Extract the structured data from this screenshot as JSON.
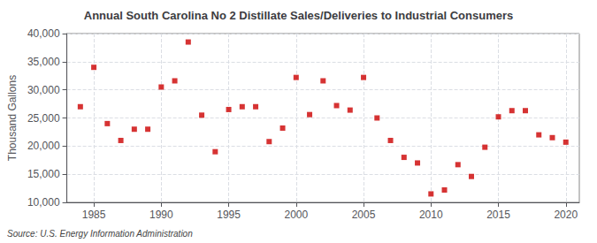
{
  "chart_data": {
    "type": "scatter",
    "title": "Annual South Carolina No 2 Distillate Sales/Deliveries to Industrial Consumers",
    "ylabel": "Thousand Gallons",
    "annotation": "Source: U.S. Energy Information Administration",
    "x": [
      1984,
      1985,
      1986,
      1987,
      1988,
      1989,
      1990,
      1991,
      1992,
      1993,
      1994,
      1995,
      1996,
      1997,
      1998,
      1999,
      2000,
      2001,
      2002,
      2003,
      2004,
      2005,
      2006,
      2007,
      2008,
      2009,
      2010,
      2011,
      2012,
      2013,
      2014,
      2015,
      2016,
      2017,
      2018,
      2019,
      2020
    ],
    "values": [
      27000,
      34000,
      24000,
      21000,
      23000,
      23000,
      30500,
      31600,
      38500,
      25500,
      19000,
      26500,
      27000,
      27000,
      20800,
      23200,
      32200,
      25600,
      31600,
      27200,
      26400,
      32200,
      25000,
      21000,
      18000,
      17000,
      11500,
      12200,
      16700,
      14600,
      19800,
      25200,
      26300,
      26300,
      22000,
      21500,
      20700
    ],
    "color": "#cc0000",
    "marker": "square",
    "xlim": [
      1983,
      2021
    ],
    "ylim": [
      10000,
      40000
    ],
    "xticks": [
      1985,
      1990,
      1995,
      2000,
      2005,
      2010,
      2015,
      2020
    ],
    "yticks": [
      {
        "value": 10000,
        "label": "10,000"
      },
      {
        "value": 15000,
        "label": "15,000"
      },
      {
        "value": 20000,
        "label": "20,000"
      },
      {
        "value": 25000,
        "label": "25,000"
      },
      {
        "value": 30000,
        "label": "30,000"
      },
      {
        "value": 35000,
        "label": "35,000"
      },
      {
        "value": 40000,
        "label": "40,000"
      }
    ],
    "grid": true
  }
}
